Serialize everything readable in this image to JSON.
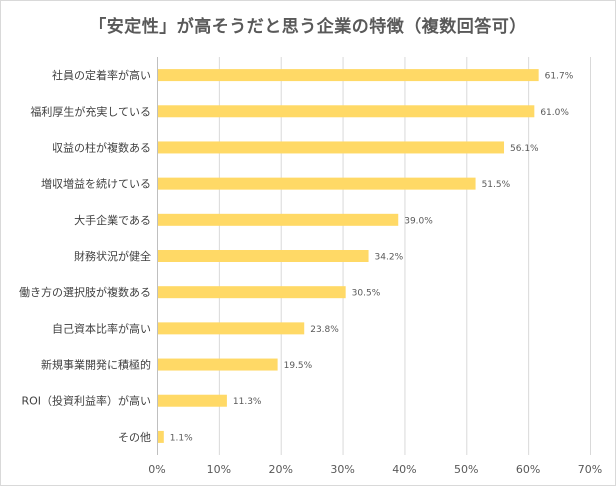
{
  "chart_data": {
    "type": "bar",
    "orientation": "horizontal",
    "title": "「安定性」が高そうだと思う企業の特徴（複数回答可）",
    "categories": [
      "社員の定着率が高い",
      "福利厚生が充実している",
      "収益の柱が複数ある",
      "増収増益を続けている",
      "大手企業である",
      "財務状況が健全",
      "働き方の選択肢が複数ある",
      "自己資本比率が高い",
      "新規事業開発に積極的",
      "ROI（投資利益率）が高い",
      "その他"
    ],
    "values": [
      61.7,
      61.0,
      56.1,
      51.5,
      39.0,
      34.2,
      30.5,
      23.8,
      19.5,
      11.3,
      1.1
    ],
    "value_labels": [
      "61.7%",
      "61.0%",
      "56.1%",
      "51.5%",
      "39.0%",
      "34.2%",
      "30.5%",
      "23.8%",
      "19.5%",
      "11.3%",
      "1.1%"
    ],
    "xlim": [
      0,
      70
    ],
    "xticks": [
      0,
      10,
      20,
      30,
      40,
      50,
      60,
      70
    ],
    "xtick_labels": [
      "0%",
      "10%",
      "20%",
      "30%",
      "40%",
      "50%",
      "60%",
      "70%"
    ],
    "xlabel": "",
    "ylabel": "",
    "grid": true,
    "legend": "none",
    "bar_color": "#FFD966"
  }
}
